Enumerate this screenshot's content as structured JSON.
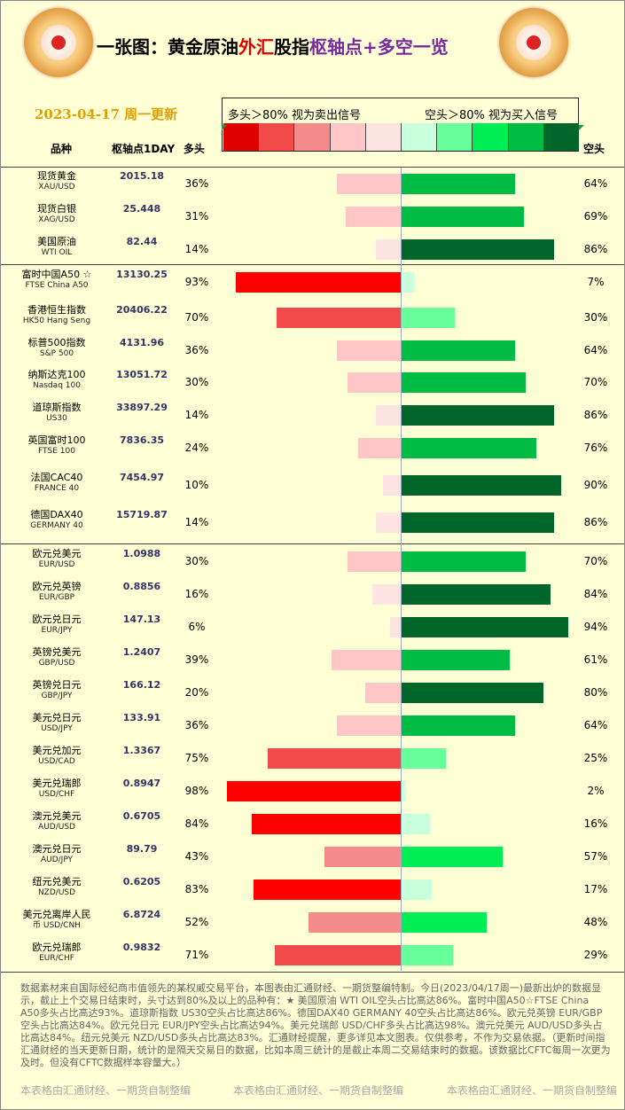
{
  "title": {
    "part1": "一张图：黄金原油",
    "part2": "外汇",
    "part3": "股指",
    "part4": "枢轴点+多空一览"
  },
  "date": "2023-04-17 周一更新",
  "legend": {
    "long_text": "多头＞80%  视为卖出信号",
    "short_text": "空头＞80%  视为买入信号",
    "swatch_colors": [
      "#e00000",
      "#f24a4a",
      "#f58a8a",
      "#ffc6c6",
      "#ffe4e4",
      "#c8ffdc",
      "#66ff99",
      "#00ee55",
      "#00bb44",
      "#006629"
    ]
  },
  "headers": {
    "name": "品种",
    "pivot": "枢轴点1DAY",
    "long": "多头",
    "short": "空头"
  },
  "colors": {
    "long_levels": [
      "#ffe4e4",
      "#ffc6c6",
      "#f58a8a",
      "#f24a4a",
      "#ff0000"
    ],
    "short_levels": [
      "#c8ffdc",
      "#66ff99",
      "#00ee55",
      "#00bb44",
      "#006629"
    ]
  },
  "rows": [
    {
      "cn": "现货黄金",
      "en": "XAU/USD",
      "pivot": "2015.18",
      "long": "36%",
      "short": "64%",
      "long_val": 36,
      "short_val": 64
    },
    {
      "cn": "现货白银",
      "en": "XAG/USD",
      "pivot": "25.448",
      "long": "31%",
      "short": "69%",
      "long_val": 31,
      "short_val": 69
    },
    {
      "cn": "美国原油",
      "en": "WTI OIL",
      "pivot": "82.44",
      "long": "14%",
      "short": "86%",
      "long_val": 14,
      "short_val": 86
    },
    {
      "cn": "富时中国A50 ☆",
      "en": "FTSE China A50",
      "pivot": "13130.25",
      "long": "93%",
      "short": "7%",
      "long_val": 93,
      "short_val": 7
    },
    {
      "cn": "香港恒生指数",
      "en": "HK50 Hang Seng",
      "pivot": "20406.22",
      "long": "70%",
      "short": "30%",
      "long_val": 70,
      "short_val": 30
    },
    {
      "cn": "标普500指数",
      "en": "S&P 500",
      "pivot": "4131.96",
      "long": "36%",
      "short": "64%",
      "long_val": 36,
      "short_val": 64
    },
    {
      "cn": "纳斯达克100",
      "en": "Nasdaq 100",
      "pivot": "13051.72",
      "long": "30%",
      "short": "70%",
      "long_val": 30,
      "short_val": 70
    },
    {
      "cn": "道琼斯指数",
      "en": "US30",
      "pivot": "33897.29",
      "long": "14%",
      "short": "86%",
      "long_val": 14,
      "short_val": 86
    },
    {
      "cn": "英国富时100",
      "en": "FTSE 100",
      "pivot": "7836.35",
      "long": "24%",
      "short": "76%",
      "long_val": 24,
      "short_val": 76
    },
    {
      "cn": "法国CAC40",
      "en": "FRANCE 40",
      "pivot": "7454.97",
      "long": "10%",
      "short": "90%",
      "long_val": 10,
      "short_val": 90
    },
    {
      "cn": "德国DAX40",
      "en": "GERMANY 40",
      "pivot": "15719.87",
      "long": "14%",
      "short": "86%",
      "long_val": 14,
      "short_val": 86
    },
    {
      "cn": "欧元兑美元",
      "en": "EUR/USD",
      "pivot": "1.0988",
      "long": "30%",
      "short": "70%",
      "long_val": 30,
      "short_val": 70
    },
    {
      "cn": "欧元兑英镑",
      "en": "EUR/GBP",
      "pivot": "0.8856",
      "long": "16%",
      "short": "84%",
      "long_val": 16,
      "short_val": 84
    },
    {
      "cn": "欧元兑日元",
      "en": "EUR/JPY",
      "pivot": "147.13",
      "long": "6%",
      "short": "94%",
      "long_val": 6,
      "short_val": 94
    },
    {
      "cn": "英镑兑美元",
      "en": "GBP/USD",
      "pivot": "1.2407",
      "long": "39%",
      "short": "61%",
      "long_val": 39,
      "short_val": 61
    },
    {
      "cn": "英镑兑日元",
      "en": "GBP/JPY",
      "pivot": "166.12",
      "long": "20%",
      "short": "80%",
      "long_val": 20,
      "short_val": 80
    },
    {
      "cn": "美元兑日元",
      "en": "USD/JPY",
      "pivot": "133.91",
      "long": "36%",
      "short": "64%",
      "long_val": 36,
      "short_val": 64
    },
    {
      "cn": "美元兑加元",
      "en": "USD/CAD",
      "pivot": "1.3367",
      "long": "75%",
      "short": "25%",
      "long_val": 75,
      "short_val": 25
    },
    {
      "cn": "美元兑瑞郎",
      "en": "USD/CHF",
      "pivot": "0.8947",
      "long": "98%",
      "short": "2%",
      "long_val": 98,
      "short_val": 2
    },
    {
      "cn": "澳元兑美元",
      "en": "AUD/USD",
      "pivot": "0.6705",
      "long": "84%",
      "short": "16%",
      "long_val": 84,
      "short_val": 16
    },
    {
      "cn": "澳元兑日元",
      "en": "AUD/JPY",
      "pivot": "89.79",
      "long": "43%",
      "short": "57%",
      "long_val": 43,
      "short_val": 57
    },
    {
      "cn": "纽元兑美元",
      "en": "NZD/USD",
      "pivot": "0.6205",
      "long": "83%",
      "short": "17%",
      "long_val": 83,
      "short_val": 17
    },
    {
      "cn": "美元兑离岸人民",
      "en": "币    USD/CNH",
      "pivot": "6.8724",
      "long": "52%",
      "short": "48%",
      "long_val": 52,
      "short_val": 48
    },
    {
      "cn": "欧元兑瑞郎",
      "en": "EUR/CHF",
      "pivot": "0.9832",
      "long": "71%",
      "short": "29%",
      "long_val": 71,
      "short_val": 29
    }
  ],
  "footer": "数据素材来自国际经纪商市值领先的某权威交易平台，本图表由汇通财经、一期货整编特制。今日(2023/04/17周一)最新出炉的数据显示，截止上个交易日结束时，头寸达到80%及以上的品种有：★ 美国原油 WTI OIL空头占比高达86%。富时中国A50☆FTSE China A50多头占比高达93%。道琼斯指数 US30空头占比高达86%。德国DAX40    GERMANY 40空头占比高达86%。欧元兑英镑 EUR/GBP空头占比高达84%。欧元兑日元 EUR/JPY空头占比高达94%。美元兑瑞郎 USD/CHF多头占比高达98%。澳元兑美元 AUD/USD多头占比高达84%。纽元兑美元 NZD/USD多头占比高达83%。汇通财经提醒，更多详见本文图表。仅供参考，不作为交易依据。（更新时间指汇通财经的当天更新日期，统计的是隔天交易日的数据，比如本周三统计的是截止本周二交易结束时的数据。该数据比CFTC每周一次更为及时。但没有CFTC数据样本容量大。）",
  "credit": "本表格由汇通财经、一期货自制整编"
}
